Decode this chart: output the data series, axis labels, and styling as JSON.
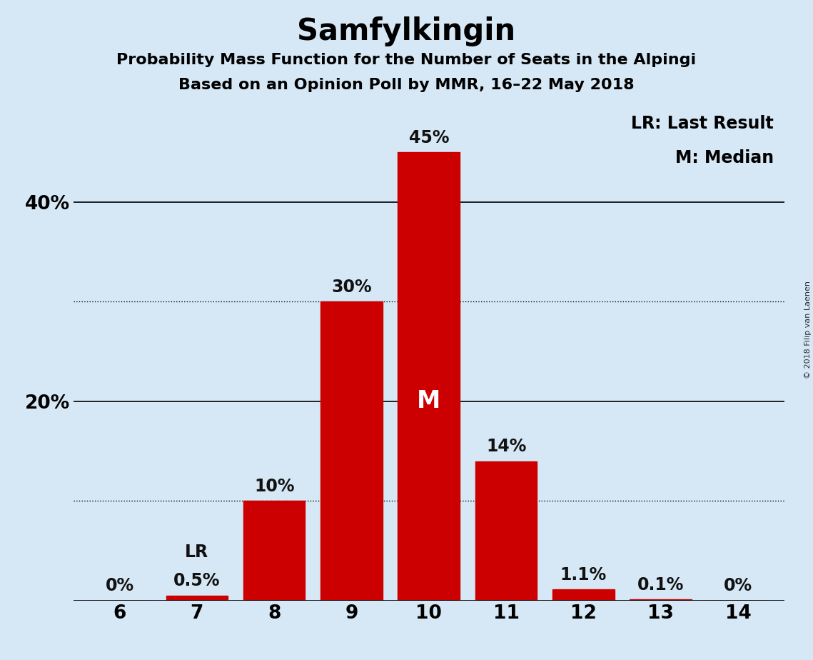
{
  "title": "Samfylkingin",
  "subtitle1": "Probability Mass Function for the Number of Seats in the Alpingi",
  "subtitle2": "Based on an Opinion Poll by MMR, 16–22 May 2018",
  "copyright": "© 2018 Filip van Laenen",
  "categories": [
    6,
    7,
    8,
    9,
    10,
    11,
    12,
    13,
    14
  ],
  "values": [
    0.0,
    0.5,
    10.0,
    30.0,
    45.0,
    14.0,
    1.1,
    0.1,
    0.0
  ],
  "bar_color": "#cc0000",
  "background_color": "#d6e8f5",
  "above_bar_color": "#111111",
  "in_bar_color": "#ffffff",
  "bar_labels": [
    "0%",
    "0.5%",
    "10%",
    "30%",
    "45%",
    "14%",
    "1.1%",
    "0.1%",
    "0%"
  ],
  "median_bar_index": 4,
  "lr_bar_index": 1,
  "ylim": [
    0,
    50
  ],
  "solid_gridlines": [
    20,
    40
  ],
  "dotted_gridlines": [
    10,
    30
  ],
  "legend_lr": "LR: Last Result",
  "legend_m": "M: Median",
  "title_fontsize": 30,
  "subtitle_fontsize": 16,
  "bar_label_fontsize": 17,
  "axis_tick_fontsize": 19,
  "legend_fontsize": 17,
  "m_fontsize": 24
}
